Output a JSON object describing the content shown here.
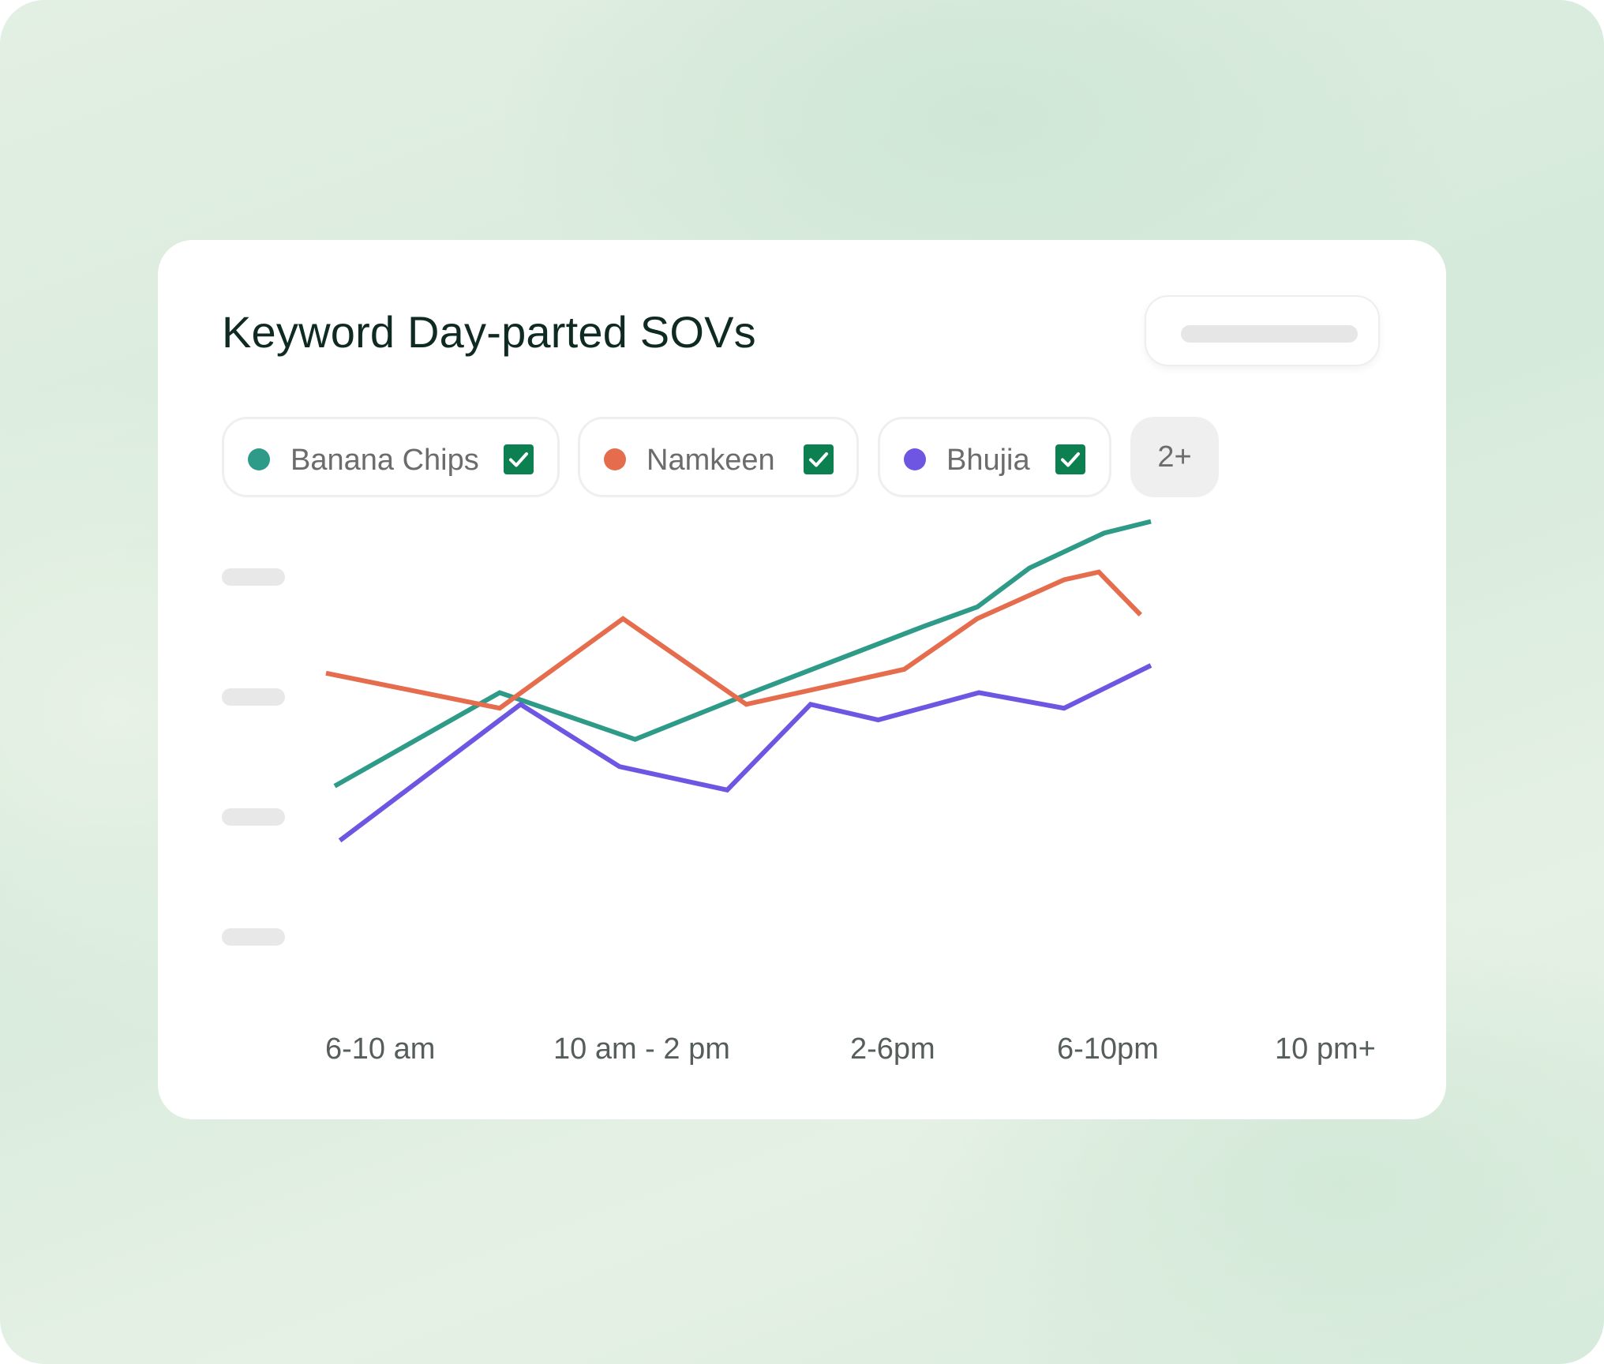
{
  "chart_data": {
    "type": "line",
    "title": "Keyword Day-parted SOVs",
    "categories": [
      "6-10 am",
      "10 am - 2 pm",
      "2-6pm",
      "6-10pm",
      "10 pm+"
    ],
    "xlabel": "",
    "ylabel": "",
    "ylim": [
      0,
      100
    ],
    "y_tick_labels_hidden": true,
    "grid": false,
    "series": [
      {
        "name": "Banana Chips",
        "color": "#2e9a88",
        "x": [
          0.05,
          1.0,
          1.78,
          2.45,
          3.44,
          3.75,
          4.05,
          4.48,
          4.75
        ],
        "values": [
          26,
          50,
          38,
          50,
          67,
          72,
          82,
          91,
          94
        ]
      },
      {
        "name": "Namkeen",
        "color": "#e56d4e",
        "x": [
          0.0,
          1.0,
          1.71,
          2.42,
          3.33,
          3.75,
          4.25,
          4.45,
          4.69
        ],
        "values": [
          55,
          46,
          69,
          47,
          56,
          69,
          79,
          81,
          70
        ]
      },
      {
        "name": "Bhujia",
        "color": "#6e56e2",
        "x": [
          0.08,
          1.12,
          1.69,
          2.31,
          2.79,
          3.18,
          3.76,
          4.25,
          4.75
        ],
        "values": [
          12,
          47,
          31,
          25,
          47,
          43,
          50,
          46,
          57
        ]
      }
    ]
  },
  "legend": {
    "items": [
      {
        "label": "Banana Chips",
        "color": "#2e9a88",
        "checked": true
      },
      {
        "label": "Namkeen",
        "color": "#e56d4e",
        "checked": true
      },
      {
        "label": "Bhujia",
        "color": "#6e56e2",
        "checked": true
      }
    ],
    "more_label": "2+"
  },
  "colors": {
    "checkbox": "#0d8052",
    "title": "#0f2a23"
  },
  "icons": {
    "checkbox": "checkmark-icon"
  }
}
